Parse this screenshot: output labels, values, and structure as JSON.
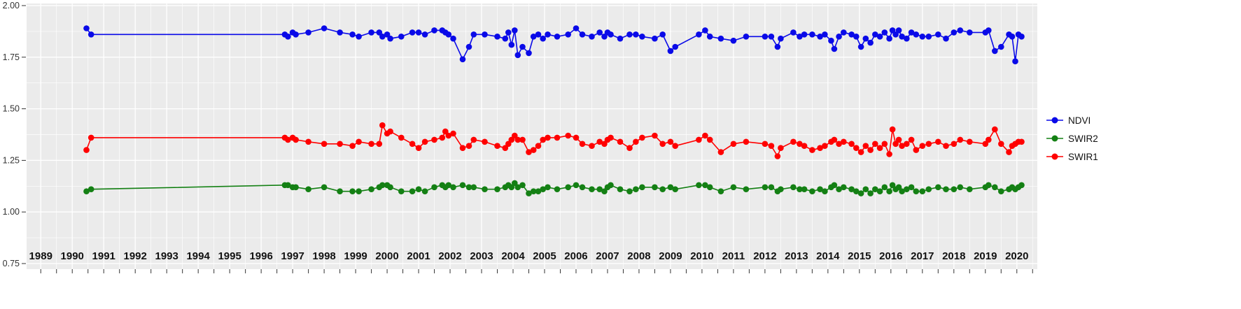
{
  "chart_data": {
    "type": "line",
    "title": "",
    "xlabel": "",
    "ylabel": "",
    "xlim": [
      1988.55,
      2020.65
    ],
    "ylim": [
      0.75,
      2.0
    ],
    "y_ticks": [
      0.75,
      1.0,
      1.25,
      1.5,
      1.75,
      2.0
    ],
    "y_tick_labels": [
      "0.75",
      "1.00",
      "1.25",
      "1.50",
      "1.75",
      "2.00"
    ],
    "x_ticks": [
      1989,
      1990,
      1991,
      1992,
      1993,
      1994,
      1995,
      1996,
      1997,
      1998,
      1999,
      2000,
      2001,
      2002,
      2003,
      2004,
      2005,
      2006,
      2007,
      2008,
      2009,
      2010,
      2011,
      2012,
      2013,
      2014,
      2015,
      2016,
      2017,
      2018,
      2019,
      2020
    ],
    "grid": {
      "major_color": "#FFFFFF",
      "minor_color": "#FFFFFF",
      "panel_background": "#EBEBEB"
    },
    "x": [
      1990.45,
      1990.6,
      1996.75,
      1996.85,
      1997.0,
      1997.1,
      1997.5,
      1998.0,
      1998.5,
      1998.9,
      1999.1,
      1999.5,
      1999.75,
      1999.85,
      2000.0,
      2000.1,
      2000.45,
      2000.8,
      2001.0,
      2001.2,
      2001.5,
      2001.75,
      2001.85,
      2001.95,
      2002.1,
      2002.4,
      2002.6,
      2002.75,
      2003.1,
      2003.5,
      2003.75,
      2003.85,
      2003.95,
      2004.05,
      2004.15,
      2004.3,
      2004.5,
      2004.65,
      2004.8,
      2004.95,
      2005.1,
      2005.4,
      2005.75,
      2006.0,
      2006.2,
      2006.5,
      2006.75,
      2006.9,
      2007.0,
      2007.1,
      2007.4,
      2007.7,
      2007.9,
      2008.1,
      2008.5,
      2008.75,
      2009.0,
      2009.15,
      2009.9,
      2010.1,
      2010.25,
      2010.6,
      2011.0,
      2011.4,
      2012.0,
      2012.2,
      2012.4,
      2012.5,
      2012.9,
      2013.1,
      2013.25,
      2013.5,
      2013.75,
      2013.9,
      2014.1,
      2014.2,
      2014.35,
      2014.5,
      2014.75,
      2014.9,
      2015.05,
      2015.2,
      2015.35,
      2015.5,
      2015.65,
      2015.8,
      2015.95,
      2016.05,
      2016.15,
      2016.25,
      2016.35,
      2016.5,
      2016.65,
      2016.8,
      2017.0,
      2017.2,
      2017.5,
      2017.75,
      2018.0,
      2018.2,
      2018.5,
      2019.0,
      2019.1,
      2019.3,
      2019.5,
      2019.75,
      2019.85,
      2019.95,
      2020.05,
      2020.15
    ],
    "series": [
      {
        "name": "NDVI",
        "color": "#0A0AE8",
        "values": [
          1.89,
          1.86,
          1.86,
          1.85,
          1.87,
          1.86,
          1.87,
          1.89,
          1.87,
          1.86,
          1.85,
          1.87,
          1.87,
          1.85,
          1.86,
          1.84,
          1.85,
          1.87,
          1.87,
          1.86,
          1.88,
          1.88,
          1.87,
          1.86,
          1.84,
          1.74,
          1.8,
          1.86,
          1.86,
          1.85,
          1.84,
          1.87,
          1.81,
          1.88,
          1.76,
          1.8,
          1.77,
          1.85,
          1.86,
          1.84,
          1.86,
          1.85,
          1.86,
          1.89,
          1.86,
          1.85,
          1.87,
          1.85,
          1.87,
          1.86,
          1.84,
          1.86,
          1.86,
          1.85,
          1.84,
          1.86,
          1.78,
          1.8,
          1.86,
          1.88,
          1.85,
          1.84,
          1.83,
          1.85,
          1.85,
          1.85,
          1.8,
          1.84,
          1.87,
          1.85,
          1.86,
          1.86,
          1.85,
          1.86,
          1.83,
          1.79,
          1.85,
          1.87,
          1.86,
          1.85,
          1.8,
          1.84,
          1.82,
          1.86,
          1.85,
          1.87,
          1.84,
          1.88,
          1.86,
          1.88,
          1.85,
          1.84,
          1.87,
          1.86,
          1.85,
          1.85,
          1.86,
          1.84,
          1.87,
          1.88,
          1.87,
          1.87,
          1.88,
          1.78,
          1.8,
          1.86,
          1.85,
          1.73,
          1.86,
          1.85
        ]
      },
      {
        "name": "SWIR2",
        "color": "#148014",
        "values": [
          1.1,
          1.11,
          1.13,
          1.13,
          1.12,
          1.12,
          1.11,
          1.12,
          1.1,
          1.1,
          1.1,
          1.11,
          1.12,
          1.13,
          1.13,
          1.12,
          1.1,
          1.1,
          1.11,
          1.1,
          1.12,
          1.13,
          1.12,
          1.13,
          1.12,
          1.13,
          1.12,
          1.12,
          1.11,
          1.11,
          1.12,
          1.13,
          1.12,
          1.14,
          1.12,
          1.13,
          1.09,
          1.1,
          1.1,
          1.11,
          1.12,
          1.11,
          1.12,
          1.13,
          1.12,
          1.11,
          1.11,
          1.1,
          1.12,
          1.13,
          1.11,
          1.1,
          1.11,
          1.12,
          1.12,
          1.11,
          1.12,
          1.11,
          1.13,
          1.13,
          1.12,
          1.1,
          1.12,
          1.11,
          1.12,
          1.12,
          1.1,
          1.11,
          1.12,
          1.11,
          1.11,
          1.1,
          1.11,
          1.1,
          1.12,
          1.13,
          1.11,
          1.12,
          1.11,
          1.1,
          1.09,
          1.11,
          1.09,
          1.11,
          1.1,
          1.12,
          1.1,
          1.13,
          1.11,
          1.12,
          1.1,
          1.11,
          1.12,
          1.1,
          1.1,
          1.11,
          1.12,
          1.11,
          1.11,
          1.12,
          1.11,
          1.12,
          1.13,
          1.12,
          1.1,
          1.11,
          1.12,
          1.11,
          1.12,
          1.13
        ]
      },
      {
        "name": "SWIR1",
        "color": "#FF0000",
        "values": [
          1.3,
          1.36,
          1.36,
          1.35,
          1.36,
          1.35,
          1.34,
          1.33,
          1.33,
          1.32,
          1.34,
          1.33,
          1.33,
          1.42,
          1.38,
          1.39,
          1.36,
          1.33,
          1.31,
          1.34,
          1.35,
          1.36,
          1.39,
          1.37,
          1.38,
          1.31,
          1.32,
          1.35,
          1.34,
          1.32,
          1.31,
          1.33,
          1.35,
          1.37,
          1.35,
          1.35,
          1.29,
          1.3,
          1.32,
          1.35,
          1.36,
          1.36,
          1.37,
          1.36,
          1.33,
          1.32,
          1.34,
          1.33,
          1.35,
          1.36,
          1.34,
          1.31,
          1.34,
          1.36,
          1.37,
          1.33,
          1.34,
          1.32,
          1.35,
          1.37,
          1.35,
          1.29,
          1.33,
          1.34,
          1.33,
          1.32,
          1.27,
          1.31,
          1.34,
          1.33,
          1.32,
          1.3,
          1.31,
          1.32,
          1.34,
          1.35,
          1.33,
          1.34,
          1.33,
          1.31,
          1.29,
          1.32,
          1.3,
          1.33,
          1.31,
          1.33,
          1.28,
          1.4,
          1.33,
          1.35,
          1.32,
          1.33,
          1.35,
          1.3,
          1.32,
          1.33,
          1.34,
          1.32,
          1.33,
          1.35,
          1.34,
          1.33,
          1.35,
          1.4,
          1.33,
          1.29,
          1.32,
          1.33,
          1.34,
          1.34
        ]
      }
    ],
    "legend": {
      "position": "right",
      "order": [
        "NDVI",
        "SWIR2",
        "SWIR1"
      ]
    }
  }
}
